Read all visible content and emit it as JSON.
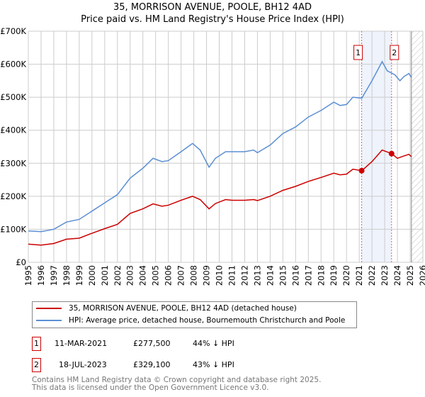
{
  "chart_data": {
    "type": "line",
    "title": "35, MORRISON AVENUE, POOLE, BH12 4AD",
    "subtitle": "Price paid vs. HM Land Registry's House Price Index (HPI)",
    "xlim": [
      1995,
      2026
    ],
    "ylim": [
      0,
      700000
    ],
    "x_ticks": [
      "1995",
      "1996",
      "1997",
      "1998",
      "1999",
      "2000",
      "2001",
      "2002",
      "2003",
      "2004",
      "2005",
      "2006",
      "2007",
      "2008",
      "2009",
      "2010",
      "2011",
      "2012",
      "2013",
      "2014",
      "2015",
      "2016",
      "2017",
      "2018",
      "2019",
      "2020",
      "2021",
      "2022",
      "2023",
      "2024",
      "2025",
      "2026"
    ],
    "y_ticks": [
      {
        "v": 0,
        "label": "£0"
      },
      {
        "v": 100000,
        "label": "£100K"
      },
      {
        "v": 200000,
        "label": "£200K"
      },
      {
        "v": 300000,
        "label": "£300K"
      },
      {
        "v": 400000,
        "label": "£400K"
      },
      {
        "v": 500000,
        "label": "£500K"
      },
      {
        "v": 600000,
        "label": "£600K"
      },
      {
        "v": 700000,
        "label": "£700K"
      }
    ],
    "grid": true,
    "series": [
      {
        "name": "35, MORRISON AVENUE, POOLE, BH12 4AD (detached house)",
        "color": "#cc0000",
        "x": [
          1995,
          1996,
          1997,
          1998,
          1999,
          2000,
          2001,
          2002,
          2003,
          2004,
          2004.8,
          2005.5,
          2006,
          2007,
          2007.9,
          2008.5,
          2009.2,
          2009.7,
          2010.5,
          2011,
          2012,
          2012.7,
          2013,
          2014,
          2015,
          2016,
          2017,
          2018,
          2019,
          2019.5,
          2020,
          2020.5,
          2021.2,
          2022,
          2022.8,
          2023.55,
          2024,
          2024.5,
          2024.9,
          2025.1
        ],
        "y": [
          55000,
          52000,
          57000,
          70000,
          73000,
          88000,
          102000,
          115000,
          148000,
          162000,
          177000,
          170000,
          173000,
          188000,
          200000,
          190000,
          162000,
          178000,
          190000,
          188000,
          188000,
          190000,
          187000,
          200000,
          218000,
          230000,
          245000,
          257000,
          270000,
          265000,
          267000,
          282000,
          277500,
          305000,
          340000,
          329100,
          315000,
          322000,
          327000,
          320000
        ]
      },
      {
        "name": "HPI: Average price, detached house, Bournemouth Christchurch and Poole",
        "color": "#5b8fd4",
        "x": [
          1995,
          1996,
          1997,
          1998,
          1999,
          2000,
          2001,
          2002,
          2003,
          2004,
          2004.8,
          2005.5,
          2006,
          2007,
          2007.9,
          2008.5,
          2009.2,
          2009.7,
          2010.5,
          2011,
          2012,
          2012.7,
          2013,
          2014,
          2015,
          2016,
          2017,
          2018,
          2019,
          2019.5,
          2020,
          2020.5,
          2021.2,
          2022,
          2022.8,
          2023.2,
          2023.8,
          2024.2,
          2024.5,
          2024.9,
          2025.1
        ],
        "y": [
          95000,
          93000,
          100000,
          122000,
          130000,
          155000,
          180000,
          205000,
          255000,
          285000,
          315000,
          305000,
          308000,
          335000,
          360000,
          340000,
          288000,
          315000,
          335000,
          335000,
          335000,
          340000,
          332000,
          355000,
          390000,
          410000,
          440000,
          460000,
          485000,
          475000,
          478000,
          500000,
          497000,
          550000,
          608000,
          580000,
          568000,
          550000,
          562000,
          572000,
          560000
        ]
      }
    ],
    "annotations": [
      {
        "label": "1",
        "x": 2021.19,
        "y": 277500
      },
      {
        "label": "2",
        "x": 2023.54,
        "y": 329100
      }
    ],
    "shaded_range": [
      2021.19,
      2023.54
    ],
    "forecast_hatch_from": 2025.1,
    "legend_placement": "below"
  },
  "sales": [
    {
      "num": "1",
      "date": "11-MAR-2021",
      "price": "£277,500",
      "hpi": "44% ↓ HPI"
    },
    {
      "num": "2",
      "date": "18-JUL-2023",
      "price": "£329,100",
      "hpi": "43% ↓ HPI"
    }
  ],
  "footer": [
    "Contains HM Land Registry data © Crown copyright and database right 2025.",
    "This data is licensed under the Open Government Licence v3.0."
  ]
}
